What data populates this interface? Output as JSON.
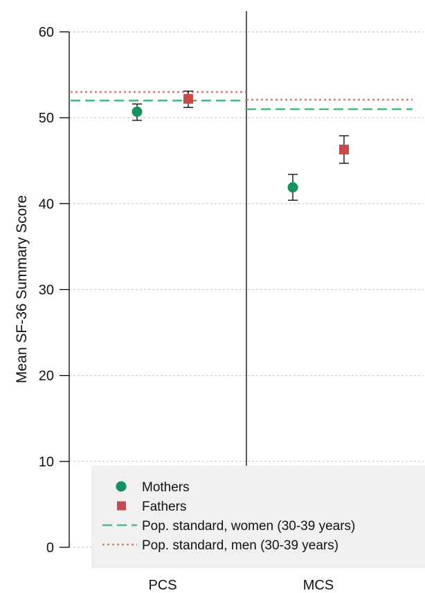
{
  "chart_data": {
    "type": "scatter",
    "title": "",
    "ylabel": "Mean SF-36 Summary Score",
    "xlabel": "",
    "ylim": [
      0,
      60
    ],
    "yticks": [
      0,
      10,
      20,
      30,
      40,
      50,
      60
    ],
    "grid": "horizontal dotted",
    "categories": [
      "PCS",
      "MCS"
    ],
    "series": [
      {
        "name": "Mothers",
        "marker": "circle",
        "color": "#11925e",
        "values": [
          50.7,
          41.9
        ],
        "ci_low": [
          49.7,
          40.4
        ],
        "ci_high": [
          51.6,
          43.4
        ]
      },
      {
        "name": "Fathers",
        "marker": "square",
        "color": "#c94a4a",
        "values": [
          52.2,
          46.3
        ],
        "ci_low": [
          51.2,
          44.7
        ],
        "ci_high": [
          53.1,
          47.9
        ]
      }
    ],
    "reference_lines": [
      {
        "name": "Pop. standard, women (30-39 years)",
        "style": "dashed",
        "color": "#4db88a",
        "values": [
          52.0,
          51.0
        ]
      },
      {
        "name": "Pop. standard, men (30-39 years)",
        "style": "dotted",
        "color": "#e07a72",
        "values": [
          53.0,
          52.1
        ]
      }
    ],
    "legend": {
      "placement": "bottom-right",
      "entries": [
        "Mothers",
        "Fathers",
        "Pop. standard, women (30-39 years)",
        "Pop. standard, men (30-39 years)"
      ]
    }
  }
}
